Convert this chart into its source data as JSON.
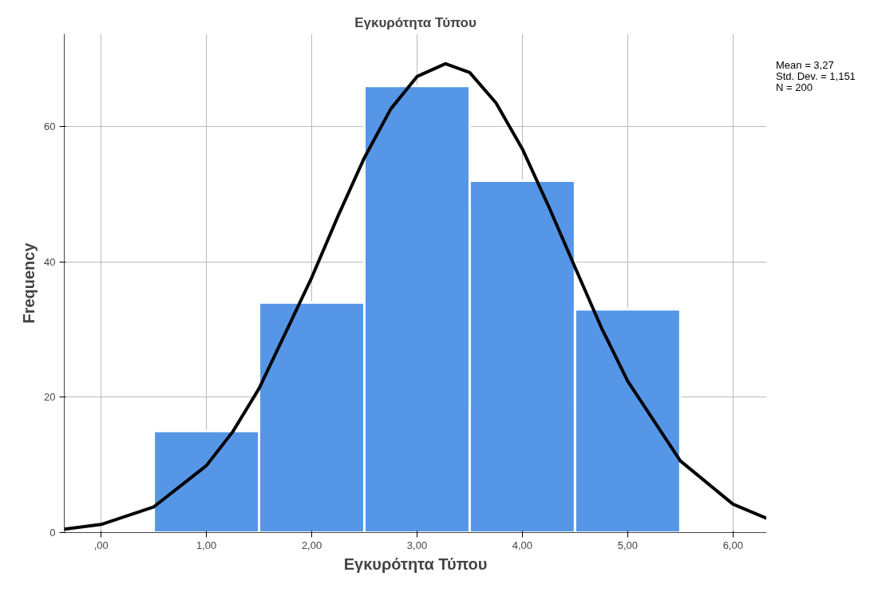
{
  "chart_data": {
    "type": "histogram",
    "title": "Εγκυρότητα Τύπου",
    "xlabel": "Εγκυρότητα Τύπου",
    "ylabel": "Frequency",
    "bins": [
      0.5,
      1.5,
      2.5,
      3.5,
      4.5,
      5.5
    ],
    "values": [
      15,
      34,
      66,
      52,
      33
    ],
    "color": "#5596e6",
    "series": [
      {
        "type": "line",
        "color": "#000000",
        "x": [
          -0.35,
          0,
          0.5,
          1,
          1.25,
          1.5,
          2,
          2.25,
          2.5,
          2.75,
          3,
          3.27,
          3.5,
          3.75,
          4,
          4.25,
          4.5,
          4.75,
          5,
          5.5,
          6,
          6.32
        ],
        "values": [
          0.5,
          1.2,
          3.8,
          9.9,
          14.9,
          21.3,
          37.7,
          46.8,
          55.4,
          62.6,
          67.4,
          69.3,
          68.0,
          63.5,
          56.7,
          48.2,
          39.2,
          30.3,
          22.4,
          10.6,
          4.2,
          2.1
        ]
      }
    ],
    "xlim": [
      -0.35,
      6.32
    ],
    "ylim": [
      0,
      73.7
    ],
    "xticks": [
      {
        "value": 0,
        "label": ",00"
      },
      {
        "value": 1,
        "label": "1,00"
      },
      {
        "value": 2,
        "label": "2,00"
      },
      {
        "value": 3,
        "label": "3,00"
      },
      {
        "value": 4,
        "label": "4,00"
      },
      {
        "value": 5,
        "label": "5,00"
      },
      {
        "value": 6,
        "label": "6,00"
      }
    ],
    "yticks": [
      0,
      20,
      40,
      60
    ],
    "grid": true,
    "annotations": [
      "Mean = 3,27",
      "Std. Dev. = 1,151",
      "N = 200"
    ]
  }
}
